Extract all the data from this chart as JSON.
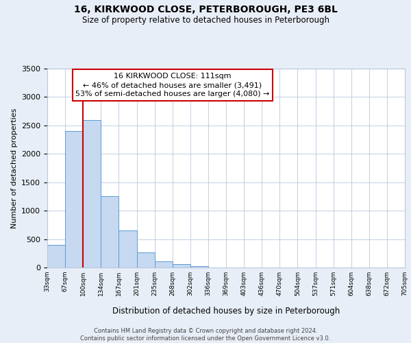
{
  "title": "16, KIRKWOOD CLOSE, PETERBOROUGH, PE3 6BL",
  "subtitle": "Size of property relative to detached houses in Peterborough",
  "xlabel": "Distribution of detached houses by size in Peterborough",
  "ylabel": "Number of detached properties",
  "bar_values": [
    400,
    2400,
    2600,
    1250,
    650,
    260,
    110,
    55,
    30,
    0,
    0,
    0,
    0,
    0,
    0,
    0,
    0,
    0,
    0,
    0
  ],
  "bin_labels": [
    "33sqm",
    "67sqm",
    "100sqm",
    "134sqm",
    "167sqm",
    "201sqm",
    "235sqm",
    "268sqm",
    "302sqm",
    "336sqm",
    "369sqm",
    "403sqm",
    "436sqm",
    "470sqm",
    "504sqm",
    "537sqm",
    "571sqm",
    "604sqm",
    "638sqm",
    "672sqm",
    "705sqm"
  ],
  "bar_color": "#c6d9f0",
  "bar_edge_color": "#5b9bd5",
  "vline_x": 2,
  "vline_color": "#cc0000",
  "ylim": [
    0,
    3500
  ],
  "yticks": [
    0,
    500,
    1000,
    1500,
    2000,
    2500,
    3000,
    3500
  ],
  "annotation_text": "16 KIRKWOOD CLOSE: 111sqm\n← 46% of detached houses are smaller (3,491)\n53% of semi-detached houses are larger (4,080) →",
  "annotation_box_color": "#ffffff",
  "annotation_border_color": "#cc0000",
  "footer_text": "Contains HM Land Registry data © Crown copyright and database right 2024.\nContains public sector information licensed under the Open Government Licence v3.0.",
  "bg_color": "#e8eef7",
  "plot_bg_color": "#ffffff",
  "grid_color": "#b8c8dc"
}
